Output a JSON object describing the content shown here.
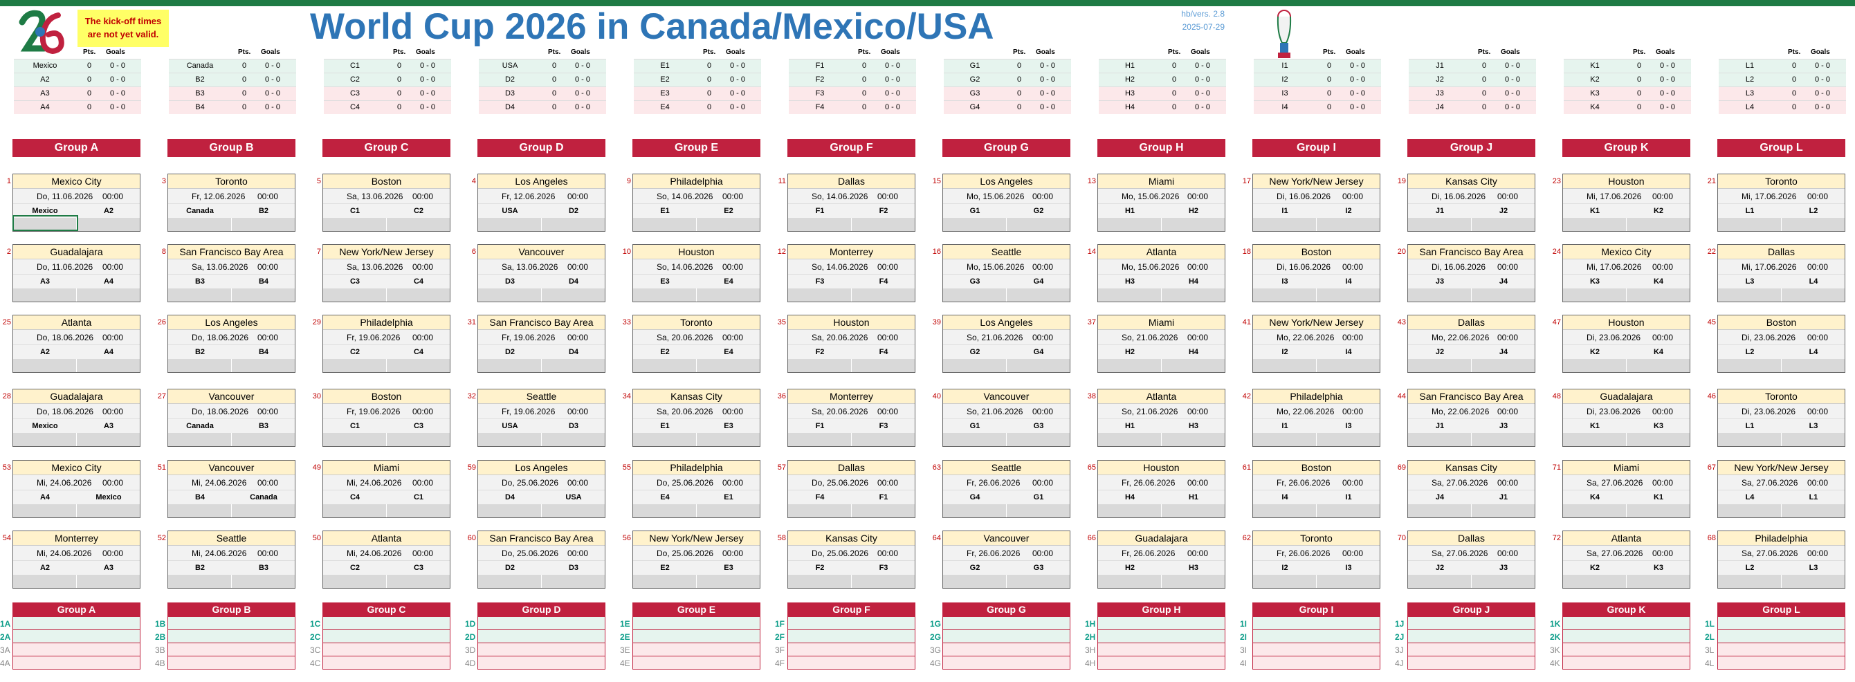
{
  "header": {
    "title": "World Cup 2026 in Canada/Mexico/USA",
    "warning_line1": "The kick-off times",
    "warning_line2": "are not yet valid.",
    "version": "hb/vers. 2.8",
    "date": "2025-07-29",
    "pts_label": "Pts.",
    "goals_label": "Goals"
  },
  "colors": {
    "accent_red": "#c0213f",
    "title_blue": "#2e75b6",
    "venue_yellow": "#fff2cc",
    "top_bar_green": "#1e7b45"
  },
  "groups": [
    {
      "name": "Group A",
      "teams": [
        "Mexico",
        "A2",
        "A3",
        "A4"
      ],
      "ranks": [
        "1A",
        "2A",
        "3A",
        "4A"
      ]
    },
    {
      "name": "Group B",
      "teams": [
        "Canada",
        "B2",
        "B3",
        "B4"
      ],
      "ranks": [
        "1B",
        "2B",
        "3B",
        "4B"
      ]
    },
    {
      "name": "Group C",
      "teams": [
        "C1",
        "C2",
        "C3",
        "C4"
      ],
      "ranks": [
        "1C",
        "2C",
        "3C",
        "4C"
      ]
    },
    {
      "name": "Group D",
      "teams": [
        "USA",
        "D2",
        "D3",
        "D4"
      ],
      "ranks": [
        "1D",
        "2D",
        "3D",
        "4D"
      ]
    },
    {
      "name": "Group E",
      "teams": [
        "E1",
        "E2",
        "E3",
        "E4"
      ],
      "ranks": [
        "1E",
        "2E",
        "3E",
        "4E"
      ]
    },
    {
      "name": "Group F",
      "teams": [
        "F1",
        "F2",
        "F3",
        "F4"
      ],
      "ranks": [
        "1F",
        "2F",
        "3F",
        "4F"
      ]
    },
    {
      "name": "Group G",
      "teams": [
        "G1",
        "G2",
        "G3",
        "G4"
      ],
      "ranks": [
        "1G",
        "2G",
        "3G",
        "4G"
      ]
    },
    {
      "name": "Group H",
      "teams": [
        "H1",
        "H2",
        "H3",
        "H4"
      ],
      "ranks": [
        "1H",
        "2H",
        "3H",
        "4H"
      ]
    },
    {
      "name": "Group I",
      "teams": [
        "I1",
        "I2",
        "I3",
        "I4"
      ],
      "ranks": [
        "1I",
        "2I",
        "3I",
        "4I"
      ]
    },
    {
      "name": "Group J",
      "teams": [
        "J1",
        "J2",
        "J3",
        "J4"
      ],
      "ranks": [
        "1J",
        "2J",
        "3J",
        "4J"
      ]
    },
    {
      "name": "Group K",
      "teams": [
        "K1",
        "K2",
        "K3",
        "K4"
      ],
      "ranks": [
        "1K",
        "2K",
        "3K",
        "4K"
      ]
    },
    {
      "name": "Group L",
      "teams": [
        "L1",
        "L2",
        "L3",
        "L4"
      ],
      "ranks": [
        "1L",
        "2L",
        "3L",
        "4L"
      ]
    }
  ],
  "standing_values": {
    "pts": "0",
    "goals": "0 - 0"
  },
  "matches": [
    [
      {
        "n": "1",
        "venue": "Mexico City",
        "date": "Do, 11.06.2026",
        "time": "00:00",
        "home": "Mexico",
        "away": "A2"
      },
      {
        "n": "2",
        "venue": "Guadalajara",
        "date": "Do, 11.06.2026",
        "time": "00:00",
        "home": "A3",
        "away": "A4"
      },
      {
        "n": "25",
        "venue": "Atlanta",
        "date": "Do, 18.06.2026",
        "time": "00:00",
        "home": "A2",
        "away": "A4"
      },
      {
        "n": "28",
        "venue": "Guadalajara",
        "date": "Do, 18.06.2026",
        "time": "00:00",
        "home": "Mexico",
        "away": "A3"
      },
      {
        "n": "53",
        "venue": "Mexico City",
        "date": "Mi, 24.06.2026",
        "time": "00:00",
        "home": "A4",
        "away": "Mexico"
      },
      {
        "n": "54",
        "venue": "Monterrey",
        "date": "Mi, 24.06.2026",
        "time": "00:00",
        "home": "A2",
        "away": "A3"
      }
    ],
    [
      {
        "n": "3",
        "venue": "Toronto",
        "date": "Fr, 12.06.2026",
        "time": "00:00",
        "home": "Canada",
        "away": "B2"
      },
      {
        "n": "8",
        "venue": "San Francisco Bay Area",
        "date": "Sa, 13.06.2026",
        "time": "00:00",
        "home": "B3",
        "away": "B4"
      },
      {
        "n": "26",
        "venue": "Los Angeles",
        "date": "Do, 18.06.2026",
        "time": "00:00",
        "home": "B2",
        "away": "B4"
      },
      {
        "n": "27",
        "venue": "Vancouver",
        "date": "Do, 18.06.2026",
        "time": "00:00",
        "home": "Canada",
        "away": "B3"
      },
      {
        "n": "51",
        "venue": "Vancouver",
        "date": "Mi, 24.06.2026",
        "time": "00:00",
        "home": "B4",
        "away": "Canada"
      },
      {
        "n": "52",
        "venue": "Seattle",
        "date": "Mi, 24.06.2026",
        "time": "00:00",
        "home": "B2",
        "away": "B3"
      }
    ],
    [
      {
        "n": "5",
        "venue": "Boston",
        "date": "Sa, 13.06.2026",
        "time": "00:00",
        "home": "C1",
        "away": "C2"
      },
      {
        "n": "7",
        "venue": "New York/New Jersey",
        "date": "Sa, 13.06.2026",
        "time": "00:00",
        "home": "C3",
        "away": "C4"
      },
      {
        "n": "29",
        "venue": "Philadelphia",
        "date": "Fr, 19.06.2026",
        "time": "00:00",
        "home": "C2",
        "away": "C4"
      },
      {
        "n": "30",
        "venue": "Boston",
        "date": "Fr, 19.06.2026",
        "time": "00:00",
        "home": "C1",
        "away": "C3"
      },
      {
        "n": "49",
        "venue": "Miami",
        "date": "Mi, 24.06.2026",
        "time": "00:00",
        "home": "C4",
        "away": "C1"
      },
      {
        "n": "50",
        "venue": "Atlanta",
        "date": "Mi, 24.06.2026",
        "time": "00:00",
        "home": "C2",
        "away": "C3"
      }
    ],
    [
      {
        "n": "4",
        "venue": "Los Angeles",
        "date": "Fr, 12.06.2026",
        "time": "00:00",
        "home": "USA",
        "away": "D2"
      },
      {
        "n": "6",
        "venue": "Vancouver",
        "date": "Sa, 13.06.2026",
        "time": "00:00",
        "home": "D3",
        "away": "D4"
      },
      {
        "n": "31",
        "venue": "San Francisco Bay Area",
        "date": "Fr, 19.06.2026",
        "time": "00:00",
        "home": "D2",
        "away": "D4"
      },
      {
        "n": "32",
        "venue": "Seattle",
        "date": "Fr, 19.06.2026",
        "time": "00:00",
        "home": "USA",
        "away": "D3"
      },
      {
        "n": "59",
        "venue": "Los Angeles",
        "date": "Do, 25.06.2026",
        "time": "00:00",
        "home": "D4",
        "away": "USA"
      },
      {
        "n": "60",
        "venue": "San Francisco Bay Area",
        "date": "Do, 25.06.2026",
        "time": "00:00",
        "home": "D2",
        "away": "D3"
      }
    ],
    [
      {
        "n": "9",
        "venue": "Philadelphia",
        "date": "So, 14.06.2026",
        "time": "00:00",
        "home": "E1",
        "away": "E2"
      },
      {
        "n": "10",
        "venue": "Houston",
        "date": "So, 14.06.2026",
        "time": "00:00",
        "home": "E3",
        "away": "E4"
      },
      {
        "n": "33",
        "venue": "Toronto",
        "date": "Sa, 20.06.2026",
        "time": "00:00",
        "home": "E2",
        "away": "E4"
      },
      {
        "n": "34",
        "venue": "Kansas City",
        "date": "Sa, 20.06.2026",
        "time": "00:00",
        "home": "E1",
        "away": "E3"
      },
      {
        "n": "55",
        "venue": "Philadelphia",
        "date": "Do, 25.06.2026",
        "time": "00:00",
        "home": "E4",
        "away": "E1"
      },
      {
        "n": "56",
        "venue": "New York/New Jersey",
        "date": "Do, 25.06.2026",
        "time": "00:00",
        "home": "E2",
        "away": "E3"
      }
    ],
    [
      {
        "n": "11",
        "venue": "Dallas",
        "date": "So, 14.06.2026",
        "time": "00:00",
        "home": "F1",
        "away": "F2"
      },
      {
        "n": "12",
        "venue": "Monterrey",
        "date": "So, 14.06.2026",
        "time": "00:00",
        "home": "F3",
        "away": "F4"
      },
      {
        "n": "35",
        "venue": "Houston",
        "date": "Sa, 20.06.2026",
        "time": "00:00",
        "home": "F2",
        "away": "F4"
      },
      {
        "n": "36",
        "venue": "Monterrey",
        "date": "Sa, 20.06.2026",
        "time": "00:00",
        "home": "F1",
        "away": "F3"
      },
      {
        "n": "57",
        "venue": "Dallas",
        "date": "Do, 25.06.2026",
        "time": "00:00",
        "home": "F4",
        "away": "F1"
      },
      {
        "n": "58",
        "venue": "Kansas City",
        "date": "Do, 25.06.2026",
        "time": "00:00",
        "home": "F2",
        "away": "F3"
      }
    ],
    [
      {
        "n": "15",
        "venue": "Los Angeles",
        "date": "Mo, 15.06.2026",
        "time": "00:00",
        "home": "G1",
        "away": "G2"
      },
      {
        "n": "16",
        "venue": "Seattle",
        "date": "Mo, 15.06.2026",
        "time": "00:00",
        "home": "G3",
        "away": "G4"
      },
      {
        "n": "39",
        "venue": "Los Angeles",
        "date": "So, 21.06.2026",
        "time": "00:00",
        "home": "G2",
        "away": "G4"
      },
      {
        "n": "40",
        "venue": "Vancouver",
        "date": "So, 21.06.2026",
        "time": "00:00",
        "home": "G1",
        "away": "G3"
      },
      {
        "n": "63",
        "venue": "Seattle",
        "date": "Fr, 26.06.2026",
        "time": "00:00",
        "home": "G4",
        "away": "G1"
      },
      {
        "n": "64",
        "venue": "Vancouver",
        "date": "Fr, 26.06.2026",
        "time": "00:00",
        "home": "G2",
        "away": "G3"
      }
    ],
    [
      {
        "n": "13",
        "venue": "Miami",
        "date": "Mo, 15.06.2026",
        "time": "00:00",
        "home": "H1",
        "away": "H2"
      },
      {
        "n": "14",
        "venue": "Atlanta",
        "date": "Mo, 15.06.2026",
        "time": "00:00",
        "home": "H3",
        "away": "H4"
      },
      {
        "n": "37",
        "venue": "Miami",
        "date": "So, 21.06.2026",
        "time": "00:00",
        "home": "H2",
        "away": "H4"
      },
      {
        "n": "38",
        "venue": "Atlanta",
        "date": "So, 21.06.2026",
        "time": "00:00",
        "home": "H1",
        "away": "H3"
      },
      {
        "n": "65",
        "venue": "Houston",
        "date": "Fr, 26.06.2026",
        "time": "00:00",
        "home": "H4",
        "away": "H1"
      },
      {
        "n": "66",
        "venue": "Guadalajara",
        "date": "Fr, 26.06.2026",
        "time": "00:00",
        "home": "H2",
        "away": "H3"
      }
    ],
    [
      {
        "n": "17",
        "venue": "New York/New Jersey",
        "date": "Di, 16.06.2026",
        "time": "00:00",
        "home": "I1",
        "away": "I2"
      },
      {
        "n": "18",
        "venue": "Boston",
        "date": "Di, 16.06.2026",
        "time": "00:00",
        "home": "I3",
        "away": "I4"
      },
      {
        "n": "41",
        "venue": "New York/New Jersey",
        "date": "Mo, 22.06.2026",
        "time": "00:00",
        "home": "I2",
        "away": "I4"
      },
      {
        "n": "42",
        "venue": "Philadelphia",
        "date": "Mo, 22.06.2026",
        "time": "00:00",
        "home": "I1",
        "away": "I3"
      },
      {
        "n": "61",
        "venue": "Boston",
        "date": "Fr, 26.06.2026",
        "time": "00:00",
        "home": "I4",
        "away": "I1"
      },
      {
        "n": "62",
        "venue": "Toronto",
        "date": "Fr, 26.06.2026",
        "time": "00:00",
        "home": "I2",
        "away": "I3"
      }
    ],
    [
      {
        "n": "19",
        "venue": "Kansas City",
        "date": "Di, 16.06.2026",
        "time": "00:00",
        "home": "J1",
        "away": "J2"
      },
      {
        "n": "20",
        "venue": "San Francisco Bay Area",
        "date": "Di, 16.06.2026",
        "time": "00:00",
        "home": "J3",
        "away": "J4"
      },
      {
        "n": "43",
        "venue": "Dallas",
        "date": "Mo, 22.06.2026",
        "time": "00:00",
        "home": "J2",
        "away": "J4"
      },
      {
        "n": "44",
        "venue": "San Francisco Bay Area",
        "date": "Mo, 22.06.2026",
        "time": "00:00",
        "home": "J1",
        "away": "J3"
      },
      {
        "n": "69",
        "venue": "Kansas City",
        "date": "Sa, 27.06.2026",
        "time": "00:00",
        "home": "J4",
        "away": "J1"
      },
      {
        "n": "70",
        "venue": "Dallas",
        "date": "Sa, 27.06.2026",
        "time": "00:00",
        "home": "J2",
        "away": "J3"
      }
    ],
    [
      {
        "n": "23",
        "venue": "Houston",
        "date": "Mi, 17.06.2026",
        "time": "00:00",
        "home": "K1",
        "away": "K2"
      },
      {
        "n": "24",
        "venue": "Mexico City",
        "date": "Mi, 17.06.2026",
        "time": "00:00",
        "home": "K3",
        "away": "K4"
      },
      {
        "n": "47",
        "venue": "Houston",
        "date": "Di, 23.06.2026",
        "time": "00:00",
        "home": "K2",
        "away": "K4"
      },
      {
        "n": "48",
        "venue": "Guadalajara",
        "date": "Di, 23.06.2026",
        "time": "00:00",
        "home": "K1",
        "away": "K3"
      },
      {
        "n": "71",
        "venue": "Miami",
        "date": "Sa, 27.06.2026",
        "time": "00:00",
        "home": "K4",
        "away": "K1"
      },
      {
        "n": "72",
        "venue": "Atlanta",
        "date": "Sa, 27.06.2026",
        "time": "00:00",
        "home": "K2",
        "away": "K3"
      }
    ],
    [
      {
        "n": "21",
        "venue": "Toronto",
        "date": "Mi, 17.06.2026",
        "time": "00:00",
        "home": "L1",
        "away": "L2"
      },
      {
        "n": "22",
        "venue": "Dallas",
        "date": "Mi, 17.06.2026",
        "time": "00:00",
        "home": "L3",
        "away": "L4"
      },
      {
        "n": "45",
        "venue": "Boston",
        "date": "Di, 23.06.2026",
        "time": "00:00",
        "home": "L2",
        "away": "L4"
      },
      {
        "n": "46",
        "venue": "Toronto",
        "date": "Di, 23.06.2026",
        "time": "00:00",
        "home": "L1",
        "away": "L3"
      },
      {
        "n": "67",
        "venue": "New York/New Jersey",
        "date": "Sa, 27.06.2026",
        "time": "00:00",
        "home": "L4",
        "away": "L1"
      },
      {
        "n": "68",
        "venue": "Philadelphia",
        "date": "Sa, 27.06.2026",
        "time": "00:00",
        "home": "L2",
        "away": "L3"
      }
    ]
  ]
}
